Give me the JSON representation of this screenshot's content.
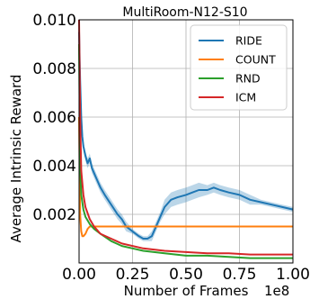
{
  "chart_data": {
    "type": "line",
    "title": "MultiRoom-N12-S10",
    "xlabel": "Number of Frames",
    "x_multiplier_label": "1e8",
    "ylabel": "Average Intrinsic Reward",
    "xlim": [
      0,
      1.0
    ],
    "ylim": [
      0,
      0.01
    ],
    "x_ticks": [
      "0.00",
      "0.25",
      "0.50",
      "0.75",
      "1.00"
    ],
    "x_tick_values": [
      0,
      0.25,
      0.5,
      0.75,
      1.0
    ],
    "y_ticks": [
      "0.002",
      "0.004",
      "0.006",
      "0.008",
      "0.010"
    ],
    "y_tick_values": [
      0.002,
      0.004,
      0.006,
      0.008,
      0.01
    ],
    "grid": true,
    "legend_position": "top-right",
    "series": [
      {
        "name": "RIDE",
        "color": "#1f77b4",
        "x": [
          0.0,
          0.005,
          0.01,
          0.015,
          0.02,
          0.03,
          0.04,
          0.05,
          0.06,
          0.08,
          0.1,
          0.12,
          0.15,
          0.18,
          0.2,
          0.22,
          0.25,
          0.28,
          0.3,
          0.32,
          0.34,
          0.36,
          0.38,
          0.4,
          0.43,
          0.46,
          0.5,
          0.53,
          0.56,
          0.6,
          0.63,
          0.66,
          0.7,
          0.75,
          0.8,
          0.85,
          0.9,
          0.95,
          1.0
        ],
        "y": [
          0.0095,
          0.0075,
          0.006,
          0.0052,
          0.0048,
          0.0044,
          0.0041,
          0.0043,
          0.0039,
          0.0035,
          0.0031,
          0.0028,
          0.0024,
          0.002,
          0.0018,
          0.0015,
          0.0013,
          0.0011,
          0.001,
          0.001,
          0.0011,
          0.0015,
          0.0019,
          0.0023,
          0.0026,
          0.0027,
          0.0028,
          0.0029,
          0.003,
          0.003,
          0.0031,
          0.003,
          0.0029,
          0.0028,
          0.0026,
          0.0025,
          0.0024,
          0.0023,
          0.0022
        ],
        "band": [
          0.0003,
          0.0003,
          0.0003,
          0.0002,
          0.0002,
          0.0002,
          0.0002,
          0.0002,
          0.0002,
          0.0002,
          0.0002,
          0.0002,
          0.0002,
          0.0002,
          0.0002,
          0.0002,
          0.0001,
          0.0001,
          0.0001,
          0.0001,
          0.0002,
          0.0002,
          0.0002,
          0.0003,
          0.0003,
          0.0003,
          0.0003,
          0.0003,
          0.0003,
          0.0002,
          0.0002,
          0.0002,
          0.0002,
          0.0002,
          0.0002,
          0.0001,
          0.0001,
          0.0001,
          0.0001
        ]
      },
      {
        "name": "COUNT",
        "color": "#ff7f0e",
        "x": [
          0.0,
          0.005,
          0.01,
          0.015,
          0.02,
          0.03,
          0.04,
          0.05,
          0.07,
          0.1,
          0.2,
          0.3,
          0.4,
          0.5,
          0.6,
          0.7,
          0.8,
          0.9,
          1.0
        ],
        "y": [
          0.006,
          0.002,
          0.0013,
          0.0011,
          0.0011,
          0.0012,
          0.0014,
          0.0015,
          0.0015,
          0.0015,
          0.0015,
          0.0015,
          0.0015,
          0.0015,
          0.0015,
          0.0015,
          0.0015,
          0.0015,
          0.0015
        ]
      },
      {
        "name": "RND",
        "color": "#2ca02c",
        "x": [
          0.0,
          0.005,
          0.01,
          0.02,
          0.03,
          0.05,
          0.07,
          0.1,
          0.15,
          0.2,
          0.25,
          0.3,
          0.4,
          0.5,
          0.6,
          0.7,
          0.8,
          0.9,
          1.0
        ],
        "y": [
          0.009,
          0.004,
          0.0028,
          0.0022,
          0.0019,
          0.0016,
          0.0014,
          0.0012,
          0.0009,
          0.0007,
          0.0006,
          0.0005,
          0.0004,
          0.0003,
          0.0003,
          0.00025,
          0.0002,
          0.0002,
          0.0002
        ]
      },
      {
        "name": "ICM",
        "color": "#d62728",
        "x": [
          0.0,
          0.005,
          0.01,
          0.02,
          0.03,
          0.05,
          0.07,
          0.1,
          0.15,
          0.2,
          0.3,
          0.4,
          0.5,
          0.6,
          0.7,
          0.8,
          0.9,
          1.0
        ],
        "y": [
          0.01,
          0.006,
          0.0038,
          0.0028,
          0.0023,
          0.0018,
          0.0015,
          0.0012,
          0.001,
          0.0008,
          0.0006,
          0.0005,
          0.00045,
          0.0004,
          0.0004,
          0.00035,
          0.00035,
          0.00035
        ]
      }
    ]
  }
}
